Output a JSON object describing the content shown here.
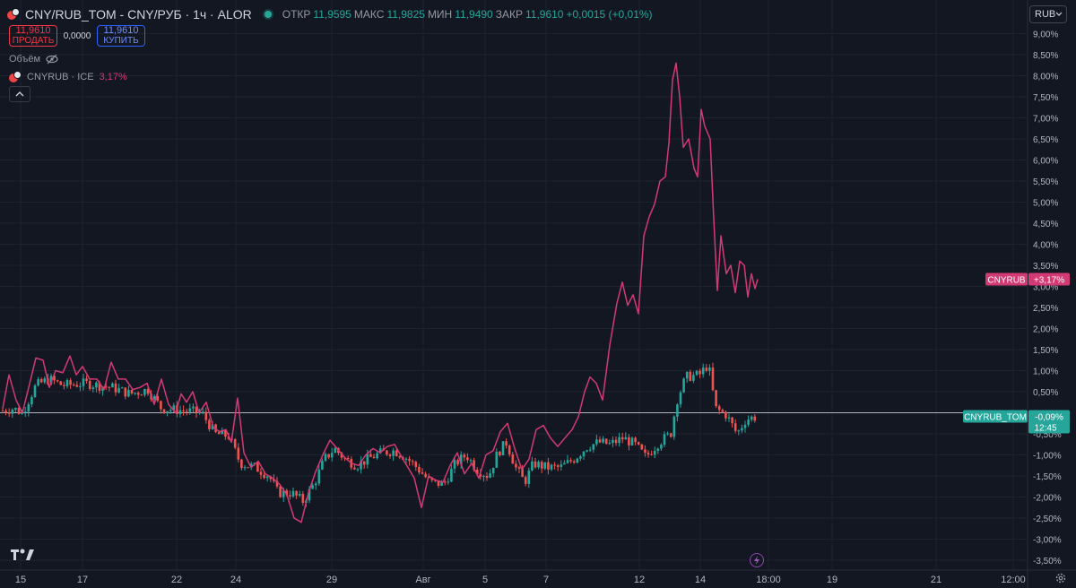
{
  "header": {
    "title": "CNY/RUB_TOM - CNY/РУБ · 1ч · ALOR",
    "ohlc": [
      {
        "k": "ОТКР",
        "v": "11,9595"
      },
      {
        "k": "МАКС",
        "v": "11,9825"
      },
      {
        "k": "МИН",
        "v": "11,9490"
      },
      {
        "k": "ЗАКР",
        "v": "11,9610"
      },
      {
        "k": "",
        "v": "+0,0015 (+0,01%)"
      }
    ]
  },
  "trade": {
    "sell_price": "11,9610",
    "sell_label": "ПРОДАТЬ",
    "spread": "0,0000",
    "buy_price": "11,9610",
    "buy_label": "КУПИТЬ"
  },
  "volume_label": "Объём",
  "compare": {
    "label": "CNYRUB · ICE",
    "value": "3,17%"
  },
  "currency_button": "RUB",
  "price_axis": [
    "9,00%",
    "8,50%",
    "8,00%",
    "7,50%",
    "7,00%",
    "6,50%",
    "6,00%",
    "5,50%",
    "5,00%",
    "4,50%",
    "4,00%",
    "3,50%",
    "3,00%",
    "2,50%",
    "2,00%",
    "1,50%",
    "1,00%",
    "0,50%",
    "-0,50%",
    "-1,00%",
    "-1,50%",
    "-2,00%",
    "-2,50%",
    "-3,00%",
    "-3,50%"
  ],
  "time_axis": [
    "15",
    "17",
    "22",
    "24",
    "29",
    "Авг",
    "5",
    "7",
    "12",
    "14",
    "18:00",
    "19",
    "21",
    "12:00"
  ],
  "labels": {
    "cnyrub_name": "CNYRUB",
    "cnyrub_value": "+3,17%",
    "main_name": "CNYRUB_TOM",
    "main_value": "-0,09%",
    "main_countdown": "12:45"
  },
  "colors": {
    "background": "#131722",
    "up": "#26a69a",
    "down": "#ef5350",
    "compare_line": "#d23a74",
    "zero_line": "#b2b5be"
  },
  "chart_data": {
    "type": "line",
    "series": [
      {
        "name": "CNYRUB_TOM",
        "x": [
          "15",
          "17",
          "22",
          "24",
          "29",
          "Авг",
          "5",
          "7",
          "12",
          "14",
          "18:00"
        ],
        "y": [
          0.1,
          0.7,
          0.4,
          -0.2,
          -1.9,
          -0.8,
          -1.4,
          -1.1,
          -0.9,
          0.9,
          -0.09
        ]
      },
      {
        "name": "CNYRUB",
        "x": [
          "15",
          "17",
          "22",
          "24",
          "29",
          "Авг",
          "5",
          "7",
          "12",
          "14",
          "18:00"
        ],
        "y": [
          0.5,
          0.9,
          0.7,
          0.0,
          -2.1,
          -0.9,
          -1.7,
          -0.5,
          2.5,
          8.3,
          3.17
        ]
      }
    ],
    "ylim": [
      -3.7,
      9.2
    ],
    "grid": true
  }
}
